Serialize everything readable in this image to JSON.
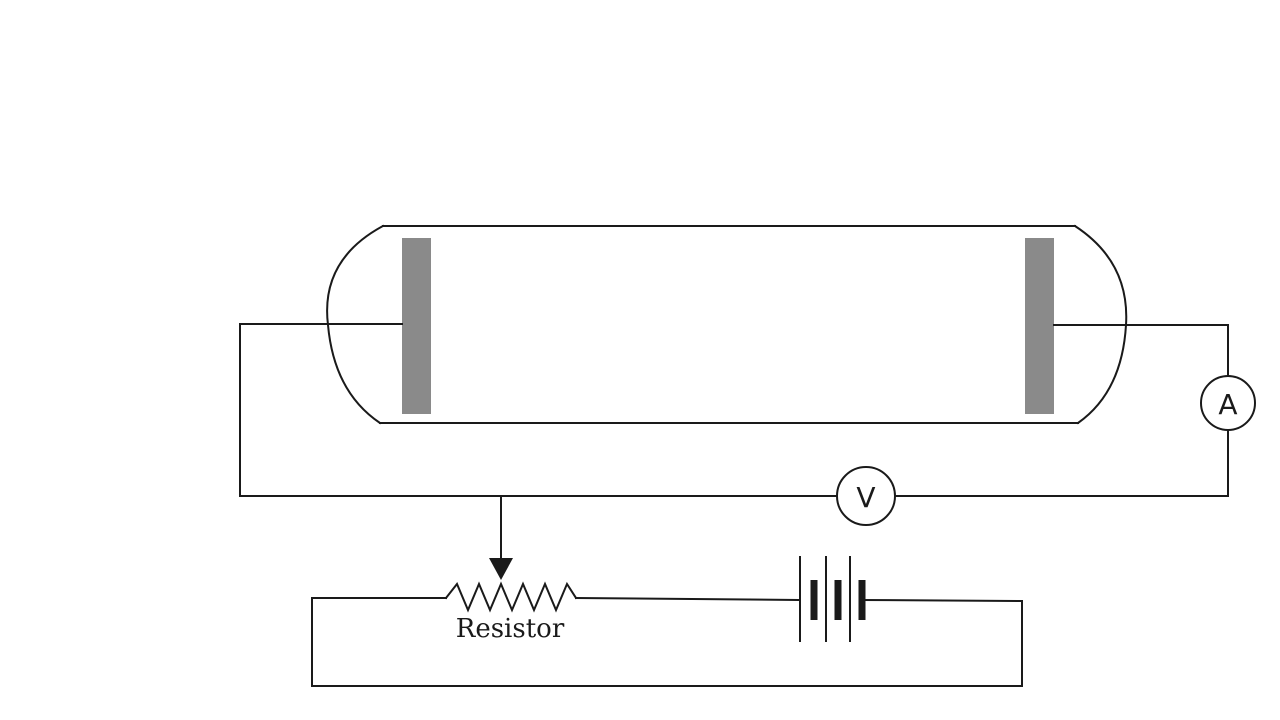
{
  "diagram": {
    "ammeter_label": "A",
    "voltmeter_label": "V",
    "resistor_label": "Resistor"
  },
  "colors": {
    "line": "#1a1a1a",
    "electrode": "#8a8a8a",
    "background": "#ffffff"
  },
  "components": [
    "discharge-tube",
    "left-electrode",
    "right-electrode",
    "ammeter",
    "voltmeter",
    "variable-resistor",
    "battery"
  ]
}
